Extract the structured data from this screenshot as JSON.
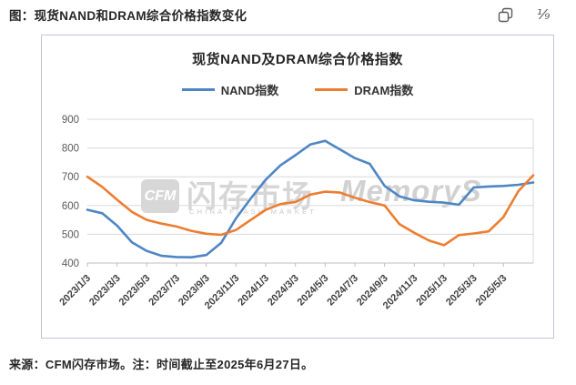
{
  "header": {
    "title": "图：现货NAND和DRAM综合价格指数变化",
    "copy_icon": "copy-icon",
    "page_indicator": "⅑"
  },
  "chart_data": {
    "type": "line",
    "title": "现货NAND及DRAM综合价格指数",
    "legend_position": "top",
    "grid": "horizontal",
    "ylim": [
      400,
      900
    ],
    "y_ticks": [
      400,
      500,
      600,
      700,
      800,
      900
    ],
    "x_tick_labels": [
      "2023/1/3",
      "2023/3/3",
      "2023/5/3",
      "2023/7/3",
      "2023/9/3",
      "2023/11/3",
      "2024/1/3",
      "2024/3/3",
      "2024/5/3",
      "2024/7/3",
      "2024/9/3",
      "2024/11/3",
      "2025/1/3",
      "2025/3/3",
      "2025/5/3"
    ],
    "x_sampling": "monthly points from 2023/1 to 2025/6/27 (31 points per series)",
    "series": [
      {
        "name": "NAND指数",
        "color": "#4E86C4",
        "values": [
          585,
          573,
          530,
          472,
          442,
          425,
          421,
          420,
          428,
          470,
          555,
          625,
          690,
          740,
          775,
          812,
          825,
          795,
          765,
          745,
          668,
          632,
          618,
          613,
          610,
          603,
          663,
          666,
          668,
          672,
          680
        ]
      },
      {
        "name": "DRAM指数",
        "color": "#ED7D31",
        "values": [
          700,
          665,
          620,
          578,
          550,
          537,
          527,
          512,
          502,
          498,
          515,
          550,
          585,
          605,
          612,
          638,
          648,
          645,
          627,
          612,
          600,
          535,
          505,
          478,
          462,
          497,
          503,
          510,
          560,
          650,
          705
        ]
      }
    ],
    "watermark": {
      "logo_text": "CFM",
      "brand_cn": "闪存市场",
      "brand_en": "CHINA FLASH MARKET",
      "brand_right": "MemoryS"
    }
  },
  "footer": {
    "source_note": "来源：CFM闪存市场。注：时间截止至2025年6月27日。"
  }
}
